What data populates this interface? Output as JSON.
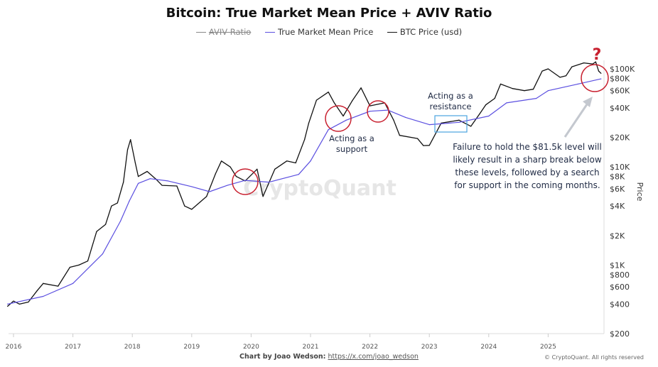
{
  "chart_data": {
    "type": "line",
    "title": "Bitcoin: True Market Mean Price + AVIV Ratio",
    "ylabel": "Price",
    "yscale": "log",
    "ylim": [
      200,
      130000
    ],
    "xlim": [
      2015.9,
      2026.0
    ],
    "grid": false,
    "legend_position": "top",
    "legend": [
      {
        "name": "AVIV Ratio",
        "color": "#888888",
        "hidden": true
      },
      {
        "name": "True Market Mean Price",
        "color": "#5b4fe0"
      },
      {
        "name": "BTC Price (usd)",
        "color": "#111111"
      }
    ],
    "x_ticks": [
      "2016",
      "2017",
      "2018",
      "2019",
      "2020",
      "2021",
      "2022",
      "2023",
      "2024",
      "2025"
    ],
    "y_ticks": [
      {
        "v": 100000,
        "label": "$100K"
      },
      {
        "v": 80000,
        "label": "$80K"
      },
      {
        "v": 60000,
        "label": "$60K"
      },
      {
        "v": 40000,
        "label": "$40K"
      },
      {
        "v": 20000,
        "label": "$20K"
      },
      {
        "v": 10000,
        "label": "$10K"
      },
      {
        "v": 8000,
        "label": "$8K"
      },
      {
        "v": 6000,
        "label": "$6K"
      },
      {
        "v": 4000,
        "label": "$4K"
      },
      {
        "v": 2000,
        "label": "$2K"
      },
      {
        "v": 1000,
        "label": "$1K"
      },
      {
        "v": 800,
        "label": "$800"
      },
      {
        "v": 600,
        "label": "$600"
      },
      {
        "v": 400,
        "label": "$400"
      },
      {
        "v": 200,
        "label": "$200"
      }
    ],
    "series": [
      {
        "name": "BTC Price (usd)",
        "color": "#111111",
        "x": [
          2015.9,
          2016.0,
          2016.1,
          2016.25,
          2016.4,
          2016.5,
          2016.75,
          2016.95,
          2017.1,
          2017.25,
          2017.4,
          2017.55,
          2017.65,
          2017.75,
          2017.85,
          2017.92,
          2017.97,
          2018.05,
          2018.1,
          2018.25,
          2018.4,
          2018.5,
          2018.75,
          2018.88,
          2019.0,
          2019.25,
          2019.4,
          2019.5,
          2019.65,
          2019.75,
          2019.9,
          2020.1,
          2020.2,
          2020.4,
          2020.6,
          2020.75,
          2020.9,
          2020.97,
          2021.1,
          2021.3,
          2021.4,
          2021.55,
          2021.7,
          2021.85,
          2022.0,
          2022.25,
          2022.4,
          2022.5,
          2022.8,
          2022.9,
          2023.0,
          2023.2,
          2023.5,
          2023.7,
          2023.85,
          2023.95,
          2024.1,
          2024.2,
          2024.4,
          2024.6,
          2024.75,
          2024.9,
          2025.0,
          2025.2,
          2025.3,
          2025.4,
          2025.6,
          2025.75,
          2025.8,
          2025.85,
          2025.89
        ],
        "values": [
          380,
          430,
          400,
          420,
          550,
          650,
          610,
          950,
          1000,
          1100,
          2200,
          2600,
          4000,
          4300,
          7000,
          15000,
          19000,
          11000,
          8000,
          9000,
          7500,
          6500,
          6400,
          4000,
          3700,
          5000,
          8500,
          11500,
          10000,
          8000,
          7200,
          9500,
          5000,
          9500,
          11500,
          11000,
          19000,
          28000,
          48000,
          58000,
          45000,
          33000,
          47000,
          64000,
          42000,
          45000,
          30000,
          21000,
          19500,
          16500,
          16600,
          28000,
          30000,
          26000,
          35000,
          43000,
          50000,
          70000,
          63000,
          60000,
          62000,
          95000,
          100000,
          82000,
          85000,
          105000,
          115000,
          112000,
          118000,
          95000,
          90000
        ]
      },
      {
        "name": "True Market Mean Price",
        "color": "#5b4fe0",
        "x": [
          2015.9,
          2016.5,
          2017.0,
          2017.5,
          2017.8,
          2017.95,
          2018.1,
          2018.3,
          2018.6,
          2019.0,
          2019.3,
          2019.6,
          2019.9,
          2020.3,
          2020.8,
          2021.0,
          2021.3,
          2021.6,
          2022.0,
          2022.3,
          2022.6,
          2023.0,
          2023.5,
          2024.0,
          2024.3,
          2024.8,
          2025.0,
          2025.5,
          2025.89
        ],
        "values": [
          400,
          480,
          650,
          1300,
          2800,
          4500,
          6800,
          7600,
          7200,
          6300,
          5600,
          6500,
          7300,
          7000,
          8400,
          11500,
          24000,
          30000,
          37000,
          38000,
          32000,
          27000,
          28500,
          33000,
          45000,
          50000,
          60000,
          70000,
          79000
        ]
      }
    ],
    "annotations": {
      "resistance": "Acting as a\nresistance",
      "support": "Acting as a\nsupport",
      "note": "Failure to hold the $81.5k level will\nlikely result in a sharp break below\nthese levels, followed by a search\nfor support in the coming months.",
      "question": "?",
      "watermark": "CryptoQuant"
    }
  },
  "footer": {
    "credit_label": "Chart by Joao Wedson:",
    "credit_link": "https://x.com/joao_wedson",
    "copyright": "© CryptoQuant. All rights reserved"
  }
}
